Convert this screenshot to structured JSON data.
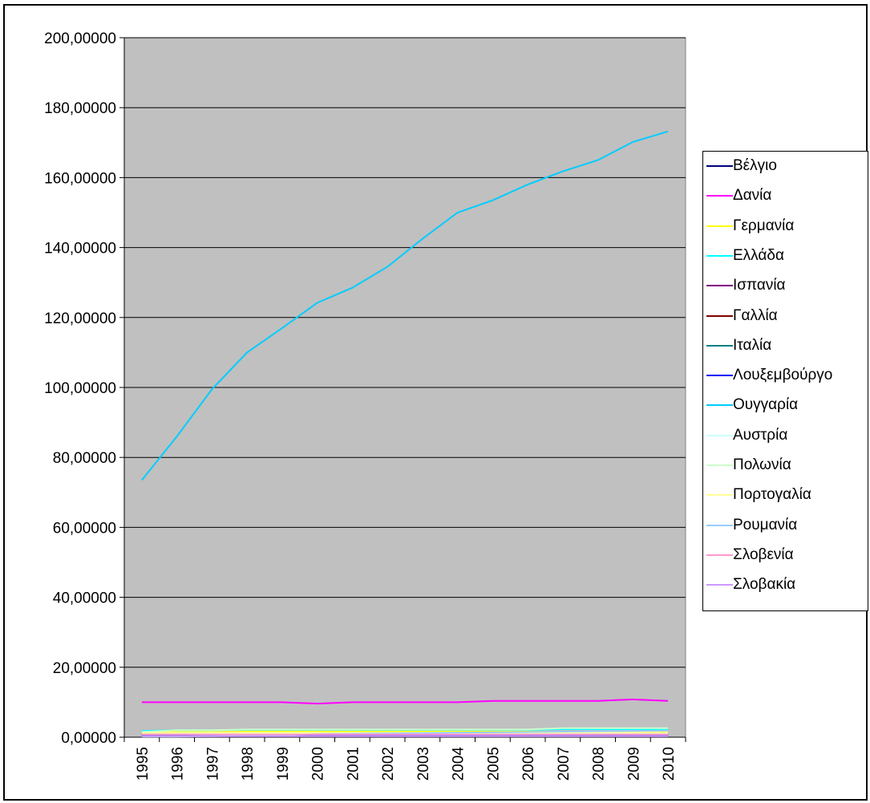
{
  "chart_data": {
    "type": "line",
    "title": "",
    "xlabel": "",
    "ylabel": "",
    "x": [
      "1995",
      "1996",
      "1997",
      "1998",
      "1999",
      "2000",
      "2001",
      "2002",
      "2003",
      "2004",
      "2005",
      "2006",
      "2007",
      "2008",
      "2009",
      "2010"
    ],
    "ylim": [
      0,
      200
    ],
    "yticks": [
      "0,00000",
      "20,00000",
      "40,00000",
      "60,00000",
      "80,00000",
      "100,00000",
      "120,00000",
      "140,00000",
      "160,00000",
      "180,00000",
      "200,00000"
    ],
    "grid": true,
    "legend_position": "right",
    "plot_background": "#c0c0c0",
    "series": [
      {
        "name": "Βέλγιο",
        "color": "#000080",
        "values": [
          1.2,
          1.2,
          1.2,
          1.3,
          1.3,
          1.3,
          1.3,
          1.3,
          1.3,
          1.3,
          1.3,
          1.3,
          1.3,
          1.3,
          1.3,
          1.3
        ]
      },
      {
        "name": "Δανία",
        "color": "#ff00ff",
        "values": [
          10.0,
          10.0,
          10.0,
          10.0,
          10.0,
          9.6,
          10.0,
          10.0,
          10.0,
          10.0,
          10.4,
          10.4,
          10.4,
          10.4,
          10.8,
          10.4
        ]
      },
      {
        "name": "Γερμανία",
        "color": "#ffff00",
        "values": [
          1.4,
          1.5,
          1.5,
          1.6,
          1.6,
          1.6,
          1.6,
          1.6,
          1.6,
          1.6,
          1.6,
          1.6,
          1.6,
          1.6,
          1.6,
          1.6
        ]
      },
      {
        "name": "Ελλάδα",
        "color": "#00ffff",
        "values": [
          1.8,
          2.0,
          2.0,
          2.1,
          2.1,
          2.1,
          2.1,
          2.1,
          2.1,
          2.1,
          2.1,
          2.1,
          2.3,
          2.3,
          2.3,
          2.3
        ]
      },
      {
        "name": "Ισπανία",
        "color": "#800080",
        "values": [
          0.6,
          0.6,
          0.6,
          0.6,
          0.6,
          0.6,
          0.6,
          0.6,
          0.6,
          0.6,
          0.6,
          0.6,
          0.6,
          0.6,
          0.6,
          0.6
        ]
      },
      {
        "name": "Γαλλία",
        "color": "#800000",
        "values": [
          0.5,
          0.5,
          0.5,
          0.5,
          0.5,
          0.5,
          0.5,
          0.5,
          0.5,
          0.5,
          0.5,
          0.5,
          0.5,
          0.5,
          0.5,
          0.5
        ]
      },
      {
        "name": "Ιταλία",
        "color": "#008080",
        "values": [
          0.7,
          0.7,
          0.7,
          0.7,
          0.7,
          0.7,
          0.7,
          0.7,
          0.7,
          0.7,
          0.7,
          0.7,
          0.7,
          0.7,
          0.7,
          0.7
        ]
      },
      {
        "name": "Λουξεμβούργο",
        "color": "#0000ff",
        "values": [
          0.4,
          0.4,
          0.4,
          0.4,
          0.4,
          0.4,
          0.4,
          0.4,
          0.4,
          0.4,
          0.4,
          0.4,
          0.4,
          0.4,
          0.4,
          0.4
        ]
      },
      {
        "name": "Ουγγαρία",
        "color": "#00ccff",
        "values": [
          73.5,
          86.0,
          99.5,
          110.0,
          117.0,
          124.2,
          128.5,
          134.5,
          142.5,
          150.0,
          153.5,
          158.0,
          161.8,
          165.0,
          170.2,
          173.2
        ]
      },
      {
        "name": "Αυστρία",
        "color": "#ccffff",
        "values": [
          1.0,
          1.0,
          1.0,
          1.0,
          1.0,
          1.0,
          1.0,
          1.0,
          1.0,
          1.0,
          1.0,
          1.0,
          1.0,
          1.0,
          1.0,
          1.0
        ]
      },
      {
        "name": "Πολωνία",
        "color": "#ccffcc",
        "values": [
          1.5,
          2.0,
          2.0,
          2.2,
          2.2,
          2.2,
          2.2,
          2.2,
          2.2,
          2.2,
          2.2,
          2.2,
          2.6,
          2.6,
          2.6,
          2.6
        ]
      },
      {
        "name": "Πορτογαλία",
        "color": "#ffff99",
        "values": [
          1.2,
          1.3,
          1.3,
          1.3,
          1.3,
          1.3,
          1.3,
          1.3,
          1.3,
          1.3,
          1.3,
          1.3,
          1.3,
          1.3,
          1.3,
          1.3
        ]
      },
      {
        "name": "Ρουμανία",
        "color": "#99ccff",
        "values": [
          0.2,
          0.2,
          0.3,
          0.4,
          0.6,
          0.9,
          1.0,
          1.1,
          1.2,
          1.3,
          1.4,
          1.5,
          1.6,
          1.7,
          1.8,
          1.9
        ]
      },
      {
        "name": "Σλοβενία",
        "color": "#ff99cc",
        "values": [
          0.8,
          0.8,
          0.8,
          0.8,
          0.8,
          0.8,
          0.8,
          0.8,
          0.8,
          0.8,
          0.8,
          0.8,
          0.8,
          0.8,
          0.8,
          0.8
        ]
      },
      {
        "name": "Σλοβακία",
        "color": "#cc99ff",
        "values": [
          0.3,
          0.3,
          0.3,
          0.3,
          0.3,
          0.3,
          0.3,
          0.3,
          0.3,
          0.3,
          0.3,
          0.3,
          0.3,
          0.3,
          0.3,
          0.3
        ]
      }
    ]
  }
}
